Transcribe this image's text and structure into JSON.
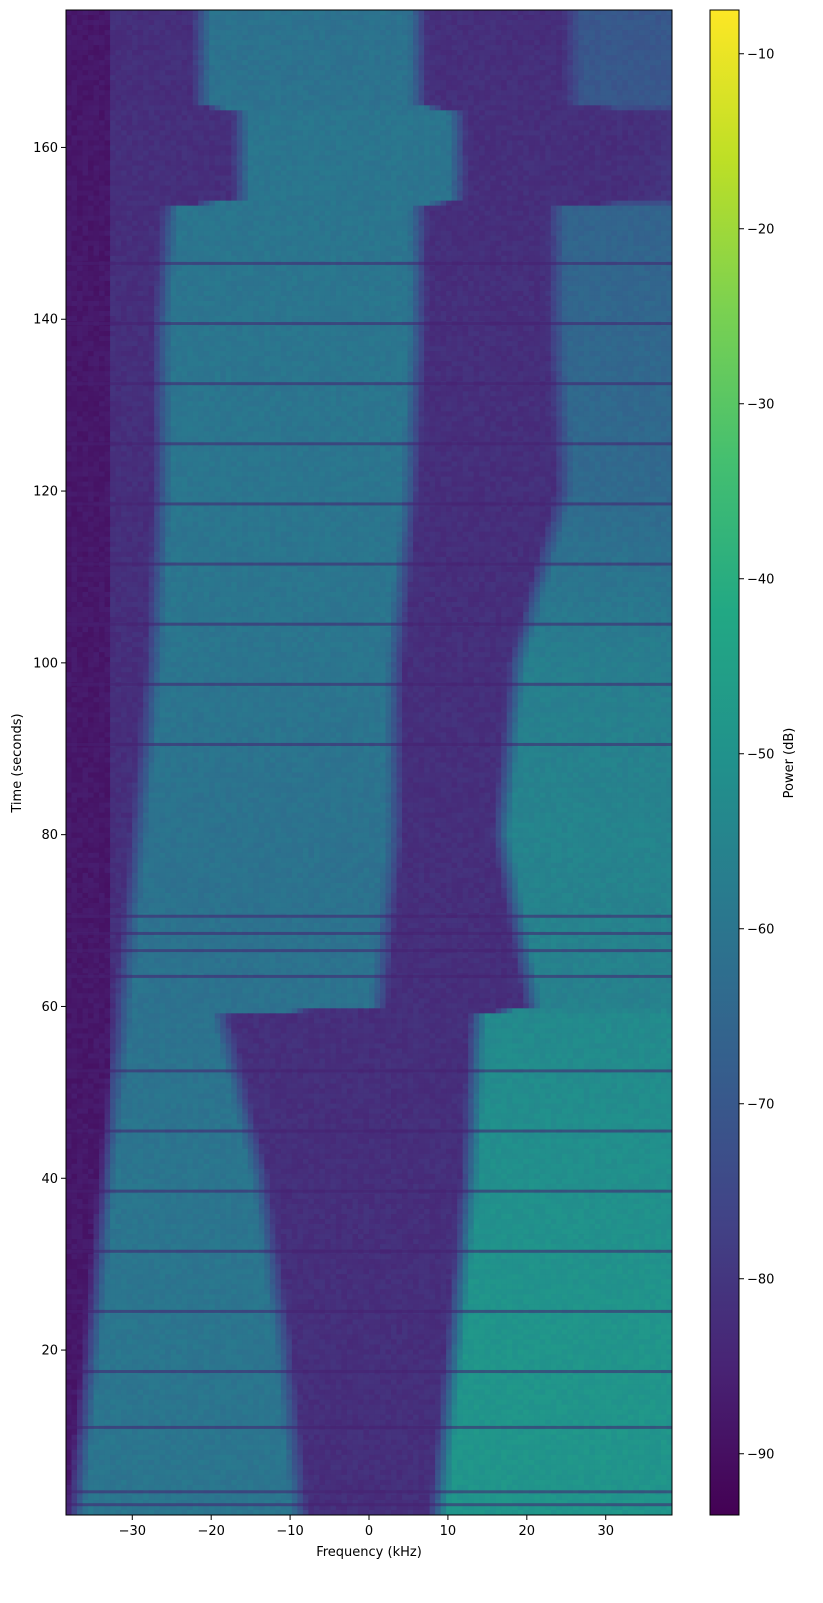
{
  "chart_data": {
    "type": "heatmap",
    "title": "",
    "xlabel": "Frequency (kHz)",
    "ylabel": "Time (seconds)",
    "xlim": [
      -38.4,
      38.4
    ],
    "ylim": [
      0.8,
      176
    ],
    "x_ticks": [
      -30,
      -20,
      -10,
      0,
      10,
      20,
      30
    ],
    "x_tick_labels": [
      "−30",
      "−20",
      "−10",
      "0",
      "10",
      "20",
      "30"
    ],
    "y_ticks": [
      20,
      40,
      60,
      80,
      100,
      120,
      140,
      160
    ],
    "y_tick_labels": [
      "20",
      "40",
      "60",
      "80",
      "100",
      "120",
      "140",
      "160"
    ],
    "grid": false,
    "colormap": "viridis",
    "colorbar": {
      "label": "Power (dB)",
      "range": [
        -93.5,
        -7.5
      ],
      "ticks": [
        -90,
        -80,
        -70,
        -60,
        -50,
        -40,
        -30,
        -20,
        -10
      ],
      "tick_labels": [
        "−90",
        "−80",
        "−70",
        "−60",
        "−50",
        "−40",
        "−30",
        "−20",
        "−10"
      ]
    },
    "band_description": {
      "units": "kHz",
      "keyframes": [
        {
          "t": 1,
          "band1": [
            -36,
            -10
          ],
          "band2": [
            10,
            38.4
          ],
          "band1_db": -60,
          "band2_db": -49
        },
        {
          "t": 20,
          "band1": [
            -34,
            -12
          ],
          "band2": [
            12,
            38.4
          ],
          "band1_db": -60,
          "band2_db": -49
        },
        {
          "t": 40,
          "band1": [
            -32,
            -15
          ],
          "band2": [
            14,
            38.4
          ],
          "band1_db": -60,
          "band2_db": -51
        },
        {
          "t": 59,
          "band1": [
            -30,
            -20
          ],
          "band2": [
            15,
            38.4
          ],
          "band1_db": -61,
          "band2_db": -53
        },
        {
          "t": 60,
          "band1": [
            -30,
            0
          ],
          "band2": [
            22,
            38.4
          ],
          "band1_db": -61,
          "band2_db": -56
        },
        {
          "t": 80,
          "band1": [
            -28,
            2
          ],
          "band2": [
            18,
            38.4
          ],
          "band1_db": -61,
          "band2_db": -55
        },
        {
          "t": 100,
          "band1": [
            -26,
            2
          ],
          "band2": [
            20,
            38.4
          ],
          "band1_db": -60,
          "band2_db": -57
        },
        {
          "t": 120,
          "band1": [
            -25,
            4
          ],
          "band2": [
            26,
            38.4
          ],
          "band1_db": -60,
          "band2_db": -64
        },
        {
          "t": 140,
          "band1": [
            -25,
            5
          ],
          "band2": [
            25,
            38.4
          ],
          "band1_db": -60,
          "band2_db": -65
        },
        {
          "t": 153,
          "band1": [
            -24,
            5
          ],
          "band2": [
            25,
            38.4
          ],
          "band1_db": -60,
          "band2_db": -66
        },
        {
          "t": 154,
          "band1": [
            -15,
            10
          ],
          "band2": [
            38,
            38.4
          ],
          "band1_db": -60,
          "band2_db": -80
        },
        {
          "t": 164,
          "band1": [
            -15,
            10
          ],
          "band2": [
            38,
            38.4
          ],
          "band1_db": -60,
          "band2_db": -80
        },
        {
          "t": 165,
          "band1": [
            -20,
            5
          ],
          "band2": [
            27,
            38.4
          ],
          "band1_db": -61,
          "band2_db": -70
        },
        {
          "t": 176,
          "band1": [
            -20,
            5
          ],
          "band2": [
            27,
            38.4
          ],
          "band1_db": -61,
          "band2_db": -70
        }
      ],
      "background_db": -82,
      "dark_edge_db": -88,
      "dark_edge_region": [
        -38.4,
        -33
      ],
      "fade_width_khz": 2.5
    },
    "horizontal_lines_t": [
      2,
      3.5,
      11,
      17.5,
      24.5,
      31.5,
      38.5,
      45.5,
      52.5,
      63.5,
      66.5,
      68.5,
      70.5,
      90.5,
      97.5,
      104.5,
      111.5,
      118.5,
      125.5,
      132.5,
      139.5,
      146.5
    ]
  }
}
